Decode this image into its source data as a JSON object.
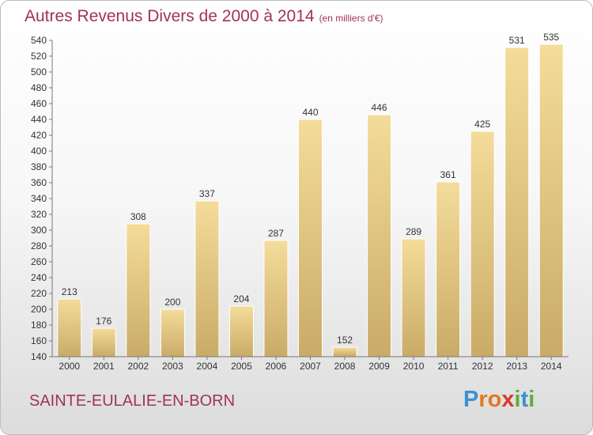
{
  "chart_data": {
    "type": "bar",
    "title": "Autres Revenus Divers de 2000 à 2014",
    "unit": "(en milliers d'€)",
    "categories": [
      "2000",
      "2001",
      "2002",
      "2003",
      "2004",
      "2005",
      "2006",
      "2007",
      "2008",
      "2009",
      "2010",
      "2011",
      "2012",
      "2013",
      "2014"
    ],
    "values": [
      213,
      176,
      308,
      200,
      337,
      204,
      287,
      440,
      152,
      446,
      289,
      361,
      425,
      531,
      535
    ],
    "ylim": [
      140,
      540
    ],
    "yticks": [
      140,
      160,
      180,
      200,
      220,
      240,
      260,
      280,
      300,
      320,
      340,
      360,
      380,
      400,
      420,
      440,
      460,
      480,
      500,
      520,
      540
    ],
    "grid": false,
    "bar_color": "#e6c77e"
  },
  "commune": "SAINTE-EULALIE-EN-BORN",
  "logo": {
    "letters": [
      "P",
      "r",
      "o",
      "x",
      "i",
      "t",
      "i"
    ],
    "colors": [
      "#3d8fd0",
      "#e07a1f",
      "#e07a1f",
      "#d63b2c",
      "#5bae3a",
      "#3d8fd0",
      "#5bae3a"
    ]
  }
}
